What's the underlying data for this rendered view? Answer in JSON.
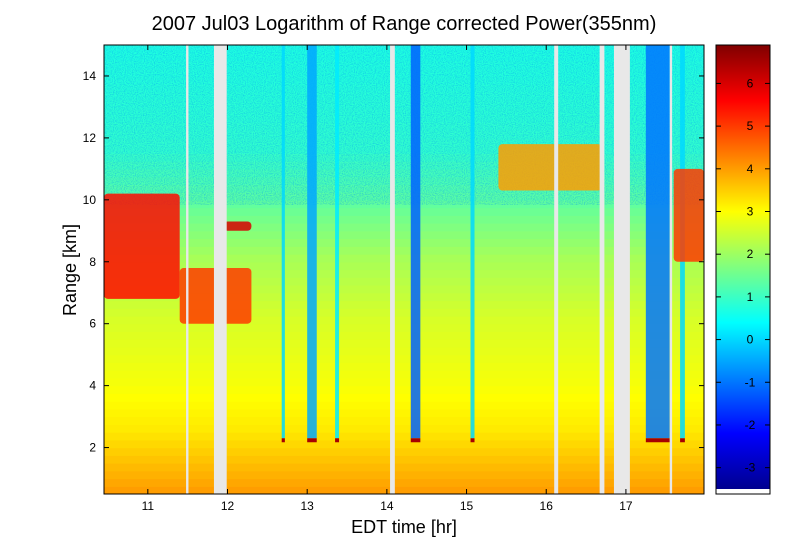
{
  "chart_data": {
    "type": "heatmap",
    "title": "2007 Jul03  Logarithm of Range corrected Power(355nm)",
    "xlabel": "EDT time [hr]",
    "ylabel": "Range [km]",
    "xlim": [
      10.45,
      17.98
    ],
    "ylim": [
      0.5,
      15.0
    ],
    "x_ticks": [
      "11",
      "12",
      "13",
      "14",
      "15",
      "16",
      "17"
    ],
    "y_ticks": [
      "2",
      "4",
      "6",
      "8",
      "10",
      "12",
      "14"
    ],
    "colorbar": {
      "range": [
        -3.5,
        6.9
      ],
      "ticks": [
        "-3",
        "-2",
        "-1",
        "0",
        "1",
        "2",
        "3",
        "4",
        "5",
        "6"
      ],
      "colormap": "jet"
    },
    "data_gaps_hr": [
      [
        11.48,
        11.51
      ],
      [
        11.83,
        11.99
      ],
      [
        14.04,
        14.1
      ],
      [
        16.1,
        16.15
      ],
      [
        16.67,
        16.73
      ],
      [
        16.85,
        17.05
      ],
      [
        17.55,
        17.58
      ]
    ],
    "cloud_layers": [
      {
        "x": [
          10.45,
          11.4
        ],
        "y_km": [
          6.8,
          10.2
        ],
        "log_power": 5.5
      },
      {
        "x": [
          11.4,
          12.3
        ],
        "y_km": [
          6.0,
          7.8
        ],
        "log_power": 5.0
      },
      {
        "x": [
          11.95,
          12.3
        ],
        "y_km": [
          9.0,
          9.3
        ],
        "log_power": 6.0
      },
      {
        "x": [
          15.4,
          16.7
        ],
        "y_km": [
          10.3,
          11.8
        ],
        "log_power": 4.0
      },
      {
        "x": [
          17.6,
          17.98
        ],
        "y_km": [
          8.0,
          11.0
        ],
        "log_power": 5.0
      }
    ],
    "boundary_layer_top_km": 2.2,
    "colors": {
      "nan_gap": "#e8e8e8",
      "axis": "#000000"
    }
  }
}
